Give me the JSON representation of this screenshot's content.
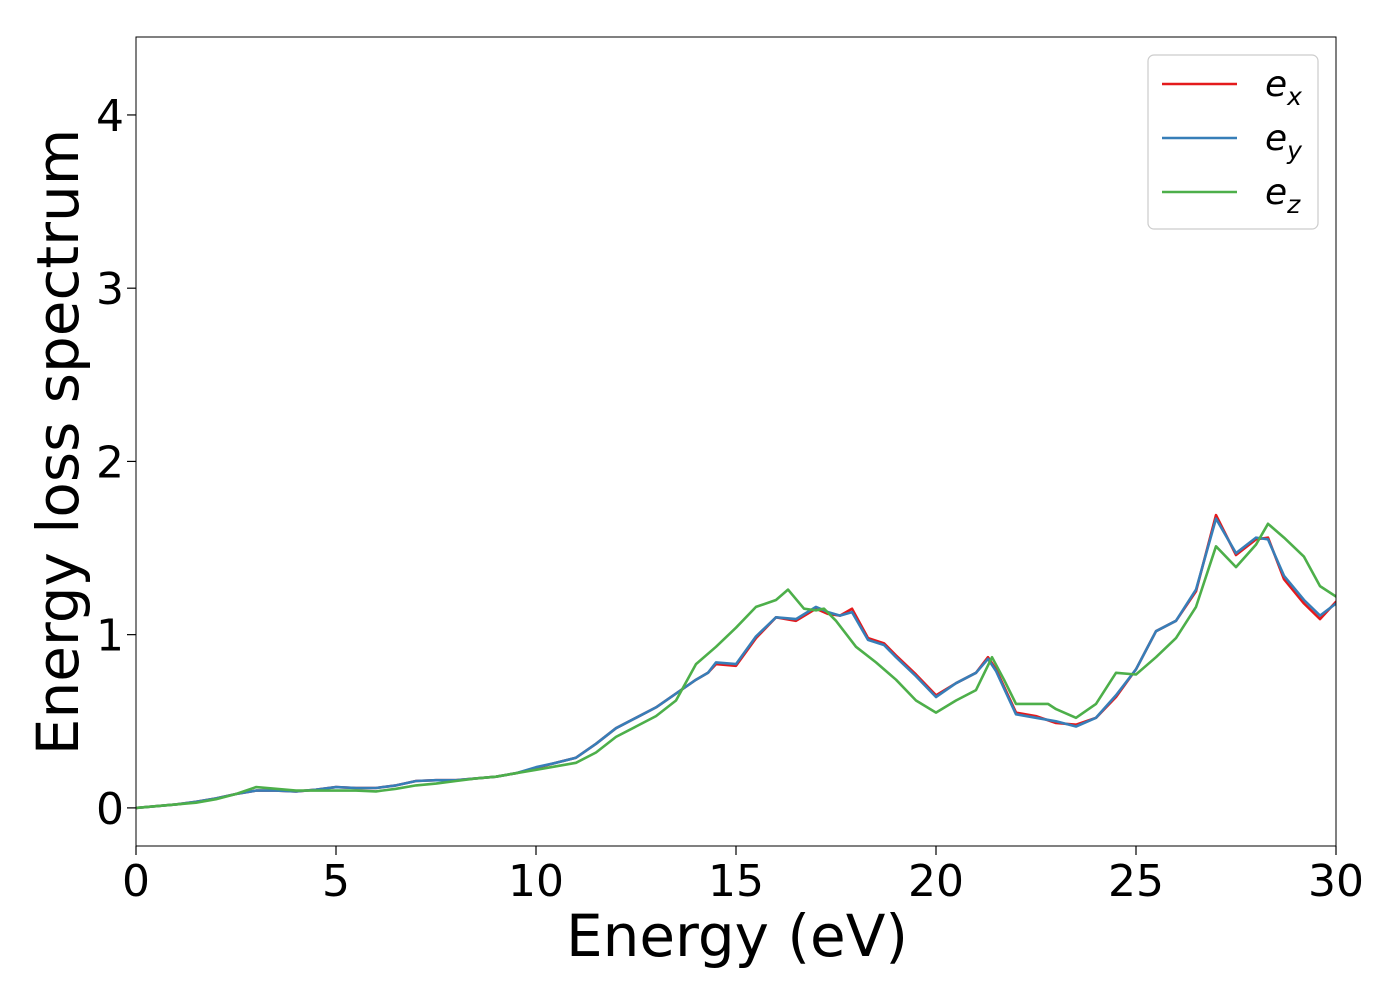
{
  "chart_data": {
    "type": "line",
    "title": "",
    "xlabel": "Energy (eV)",
    "ylabel": "Energy loss spectrum",
    "xlim": [
      0,
      30
    ],
    "ylim": [
      -0.22,
      4.45
    ],
    "xticks": [
      0,
      5,
      10,
      15,
      20,
      25,
      30
    ],
    "yticks": [
      0,
      1,
      2,
      3,
      4
    ],
    "grid": false,
    "legend_position": "top-right",
    "colors": {
      "ex": "#e41a1c",
      "ey": "#377eb8",
      "ez": "#4daf4a"
    },
    "legend": [
      {
        "key": "ex",
        "base": "e",
        "sub": "x"
      },
      {
        "key": "ey",
        "base": "e",
        "sub": "y"
      },
      {
        "key": "ez",
        "base": "e",
        "sub": "z"
      }
    ],
    "series": [
      {
        "key": "ex",
        "points": [
          [
            0,
            0
          ],
          [
            0.5,
            0.01
          ],
          [
            1,
            0.02
          ],
          [
            1.5,
            0.035
          ],
          [
            2,
            0.055
          ],
          [
            2.5,
            0.08
          ],
          [
            3,
            0.1
          ],
          [
            3.5,
            0.1
          ],
          [
            4,
            0.095
          ],
          [
            4.5,
            0.105
          ],
          [
            5,
            0.12
          ],
          [
            5.5,
            0.115
          ],
          [
            6,
            0.115
          ],
          [
            6.5,
            0.13
          ],
          [
            7,
            0.155
          ],
          [
            7.5,
            0.16
          ],
          [
            8,
            0.16
          ],
          [
            8.5,
            0.17
          ],
          [
            9,
            0.18
          ],
          [
            9.5,
            0.2
          ],
          [
            10,
            0.23
          ],
          [
            10.5,
            0.26
          ],
          [
            11,
            0.29
          ],
          [
            11.5,
            0.37
          ],
          [
            12,
            0.46
          ],
          [
            12.5,
            0.52
          ],
          [
            13,
            0.58
          ],
          [
            13.5,
            0.66
          ],
          [
            14,
            0.74
          ],
          [
            14.3,
            0.78
          ],
          [
            14.5,
            0.83
          ],
          [
            15,
            0.82
          ],
          [
            15.5,
            0.98
          ],
          [
            16,
            1.1
          ],
          [
            16.5,
            1.08
          ],
          [
            17,
            1.15
          ],
          [
            17.3,
            1.12
          ],
          [
            17.6,
            1.11
          ],
          [
            17.9,
            1.15
          ],
          [
            18.3,
            0.98
          ],
          [
            18.7,
            0.95
          ],
          [
            19,
            0.88
          ],
          [
            19.5,
            0.77
          ],
          [
            20,
            0.65
          ],
          [
            20.5,
            0.72
          ],
          [
            21,
            0.78
          ],
          [
            21.3,
            0.87
          ],
          [
            21.5,
            0.8
          ],
          [
            22,
            0.55
          ],
          [
            22.5,
            0.53
          ],
          [
            23,
            0.49
          ],
          [
            23.5,
            0.48
          ],
          [
            24,
            0.52
          ],
          [
            24.5,
            0.64
          ],
          [
            25,
            0.8
          ],
          [
            25.5,
            1.02
          ],
          [
            26,
            1.08
          ],
          [
            26.5,
            1.25
          ],
          [
            27,
            1.69
          ],
          [
            27.5,
            1.46
          ],
          [
            28,
            1.55
          ],
          [
            28.3,
            1.56
          ],
          [
            28.7,
            1.32
          ],
          [
            29.2,
            1.18
          ],
          [
            29.6,
            1.09
          ],
          [
            30,
            1.19
          ]
        ]
      },
      {
        "key": "ey",
        "points": [
          [
            0,
            0
          ],
          [
            0.5,
            0.01
          ],
          [
            1,
            0.02
          ],
          [
            1.5,
            0.035
          ],
          [
            2,
            0.055
          ],
          [
            2.5,
            0.08
          ],
          [
            3,
            0.1
          ],
          [
            3.5,
            0.1
          ],
          [
            4,
            0.095
          ],
          [
            4.5,
            0.105
          ],
          [
            5,
            0.12
          ],
          [
            5.5,
            0.115
          ],
          [
            6,
            0.115
          ],
          [
            6.5,
            0.13
          ],
          [
            7,
            0.155
          ],
          [
            7.5,
            0.16
          ],
          [
            8,
            0.16
          ],
          [
            8.5,
            0.17
          ],
          [
            9,
            0.18
          ],
          [
            9.5,
            0.2
          ],
          [
            10,
            0.235
          ],
          [
            10.5,
            0.26
          ],
          [
            11,
            0.29
          ],
          [
            11.5,
            0.37
          ],
          [
            12,
            0.46
          ],
          [
            12.5,
            0.52
          ],
          [
            13,
            0.58
          ],
          [
            13.5,
            0.66
          ],
          [
            14,
            0.74
          ],
          [
            14.3,
            0.78
          ],
          [
            14.5,
            0.84
          ],
          [
            15,
            0.83
          ],
          [
            15.5,
            0.99
          ],
          [
            16,
            1.1
          ],
          [
            16.5,
            1.09
          ],
          [
            17,
            1.16
          ],
          [
            17.3,
            1.13
          ],
          [
            17.6,
            1.11
          ],
          [
            17.9,
            1.13
          ],
          [
            18.3,
            0.97
          ],
          [
            18.7,
            0.94
          ],
          [
            19,
            0.87
          ],
          [
            19.5,
            0.76
          ],
          [
            20,
            0.64
          ],
          [
            20.5,
            0.72
          ],
          [
            21,
            0.78
          ],
          [
            21.3,
            0.86
          ],
          [
            21.5,
            0.79
          ],
          [
            22,
            0.54
          ],
          [
            22.5,
            0.52
          ],
          [
            23,
            0.5
          ],
          [
            23.5,
            0.47
          ],
          [
            24,
            0.52
          ],
          [
            24.5,
            0.65
          ],
          [
            25,
            0.8
          ],
          [
            25.5,
            1.02
          ],
          [
            26,
            1.08
          ],
          [
            26.5,
            1.26
          ],
          [
            27,
            1.67
          ],
          [
            27.5,
            1.47
          ],
          [
            28,
            1.56
          ],
          [
            28.3,
            1.55
          ],
          [
            28.7,
            1.34
          ],
          [
            29.2,
            1.2
          ],
          [
            29.6,
            1.11
          ],
          [
            30,
            1.18
          ]
        ]
      },
      {
        "key": "ez",
        "points": [
          [
            0,
            0
          ],
          [
            0.5,
            0.01
          ],
          [
            1,
            0.02
          ],
          [
            1.5,
            0.03
          ],
          [
            2,
            0.05
          ],
          [
            2.5,
            0.08
          ],
          [
            3,
            0.12
          ],
          [
            3.5,
            0.11
          ],
          [
            4,
            0.1
          ],
          [
            4.5,
            0.1
          ],
          [
            5,
            0.1
          ],
          [
            5.5,
            0.1
          ],
          [
            6,
            0.095
          ],
          [
            6.5,
            0.11
          ],
          [
            7,
            0.13
          ],
          [
            7.5,
            0.14
          ],
          [
            8,
            0.155
          ],
          [
            8.5,
            0.17
          ],
          [
            9,
            0.18
          ],
          [
            9.5,
            0.2
          ],
          [
            10,
            0.22
          ],
          [
            10.5,
            0.24
          ],
          [
            11,
            0.26
          ],
          [
            11.5,
            0.32
          ],
          [
            12,
            0.41
          ],
          [
            12.5,
            0.47
          ],
          [
            13,
            0.53
          ],
          [
            13.5,
            0.62
          ],
          [
            14,
            0.83
          ],
          [
            14.5,
            0.93
          ],
          [
            15,
            1.04
          ],
          [
            15.5,
            1.16
          ],
          [
            16,
            1.2
          ],
          [
            16.3,
            1.26
          ],
          [
            16.7,
            1.15
          ],
          [
            17,
            1.14
          ],
          [
            17.2,
            1.15
          ],
          [
            17.5,
            1.08
          ],
          [
            18,
            0.93
          ],
          [
            18.5,
            0.84
          ],
          [
            19,
            0.74
          ],
          [
            19.5,
            0.62
          ],
          [
            20,
            0.55
          ],
          [
            20.5,
            0.62
          ],
          [
            21,
            0.68
          ],
          [
            21.4,
            0.87
          ],
          [
            21.7,
            0.74
          ],
          [
            22,
            0.6
          ],
          [
            22.5,
            0.6
          ],
          [
            22.8,
            0.6
          ],
          [
            23,
            0.57
          ],
          [
            23.5,
            0.52
          ],
          [
            24,
            0.6
          ],
          [
            24.5,
            0.78
          ],
          [
            25,
            0.77
          ],
          [
            25.5,
            0.87
          ],
          [
            26,
            0.98
          ],
          [
            26.5,
            1.16
          ],
          [
            27,
            1.51
          ],
          [
            27.5,
            1.39
          ],
          [
            28,
            1.52
          ],
          [
            28.3,
            1.64
          ],
          [
            28.7,
            1.56
          ],
          [
            29.2,
            1.45
          ],
          [
            29.6,
            1.28
          ],
          [
            30,
            1.22
          ]
        ]
      }
    ]
  }
}
